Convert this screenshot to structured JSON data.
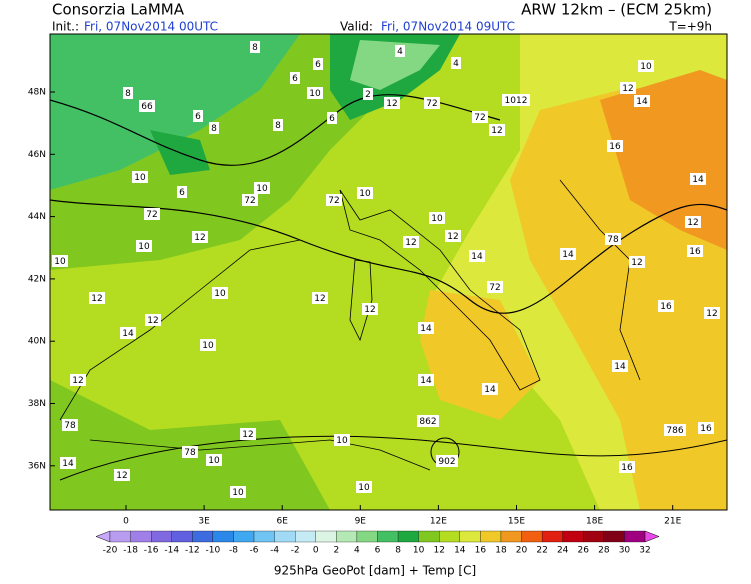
{
  "header": {
    "left_title": "Consorzia LaMMA",
    "right_title": "ARW 12km – (ECM 25km)",
    "init_label": "Init.:",
    "init_value": "Fri, 07Nov2014 00UTC",
    "valid_label": "Valid:",
    "valid_value": "Fri, 07Nov2014 09UTC",
    "lead": "T=+9h"
  },
  "map": {
    "lat_labels": [
      "48N",
      "46N",
      "44N",
      "42N",
      "40N",
      "38N",
      "36N"
    ],
    "lon_labels": [
      "0",
      "3E",
      "6E",
      "9E",
      "12E",
      "15E",
      "18E",
      "21E"
    ],
    "map_labels": [
      "8",
      "8",
      "66",
      "6",
      "8",
      "6",
      "6",
      "10",
      "8",
      "6",
      "12",
      "72",
      "72",
      "12",
      "1012",
      "10",
      "12",
      "14",
      "16",
      "14",
      "10",
      "6",
      "72",
      "10",
      "72",
      "72",
      "10",
      "10",
      "12",
      "12",
      "14",
      "12",
      "10",
      "10",
      "12",
      "10",
      "12",
      "12",
      "14",
      "72",
      "14",
      "12",
      "10",
      "12",
      "14",
      "14",
      "14",
      "12",
      "16",
      "12",
      "78",
      "12",
      "16",
      "14",
      "12",
      "78",
      "10",
      "10",
      "862",
      "902",
      "14",
      "12",
      "10",
      "10",
      "16",
      "16",
      "786",
      "78",
      "4",
      "2",
      "4"
    ]
  },
  "colorbar": {
    "labels": [
      -20,
      -18,
      -16,
      -14,
      -12,
      -10,
      -8,
      -6,
      -4,
      -2,
      0,
      2,
      4,
      6,
      8,
      10,
      12,
      14,
      16,
      18,
      20,
      22,
      24,
      26,
      28,
      30,
      32
    ],
    "colors": [
      "#b89cf0",
      "#a080e8",
      "#8068e0",
      "#6060e0",
      "#3c6ce0",
      "#2c88e8",
      "#40a8f0",
      "#70c4f4",
      "#a0daf4",
      "#c4eaf4",
      "#dcf4e4",
      "#b4e8b4",
      "#84d884",
      "#44c064",
      "#20a840",
      "#80c820",
      "#b4dc20",
      "#dce83c",
      "#f0c828",
      "#f09820",
      "#f06010",
      "#e02010",
      "#c00010",
      "#a00010",
      "#800018",
      "#a00080"
    ],
    "low_color": "#c8a8f8",
    "high_color": "#e848e8"
  },
  "footer": {
    "caption": "925hPa GeoPot [dam] + Temp [C]"
  }
}
